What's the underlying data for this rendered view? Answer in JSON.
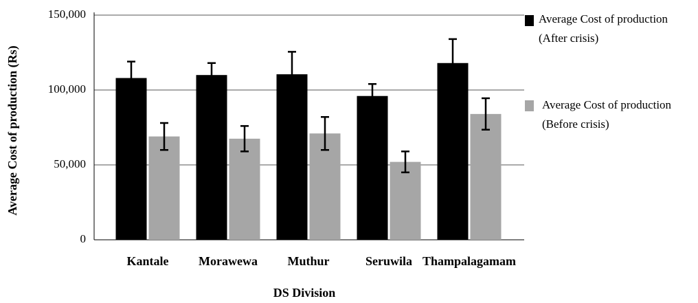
{
  "chart_data": {
    "type": "bar",
    "categories": [
      "Kantale",
      "Morawewa",
      "Muthur",
      "Seruwila",
      "Thampalagamam"
    ],
    "series": [
      {
        "name": "Average Cost of production (After crisis)",
        "color": "#000000",
        "values": [
          108000,
          110000,
          110500,
          96000,
          118000
        ],
        "errors": [
          11000,
          8000,
          15000,
          8000,
          16000
        ]
      },
      {
        "name": "Average Cost of production (Before crisis)",
        "color": "#a6a6a6",
        "values": [
          69000,
          67500,
          71000,
          52000,
          84000
        ],
        "errors": [
          9000,
          8500,
          11000,
          7000,
          10500
        ]
      }
    ],
    "xlabel": "DS Division",
    "ylabel": "Average Cost of production (Rs)",
    "ylim": [
      0,
      150000
    ],
    "yticks": [
      0,
      {
        "value": 50000,
        "label": "50,000"
      },
      {
        "value": 100000,
        "label": "100,000"
      },
      {
        "value": 150000,
        "label": "150,000"
      }
    ],
    "grid": true,
    "legend": "right"
  }
}
